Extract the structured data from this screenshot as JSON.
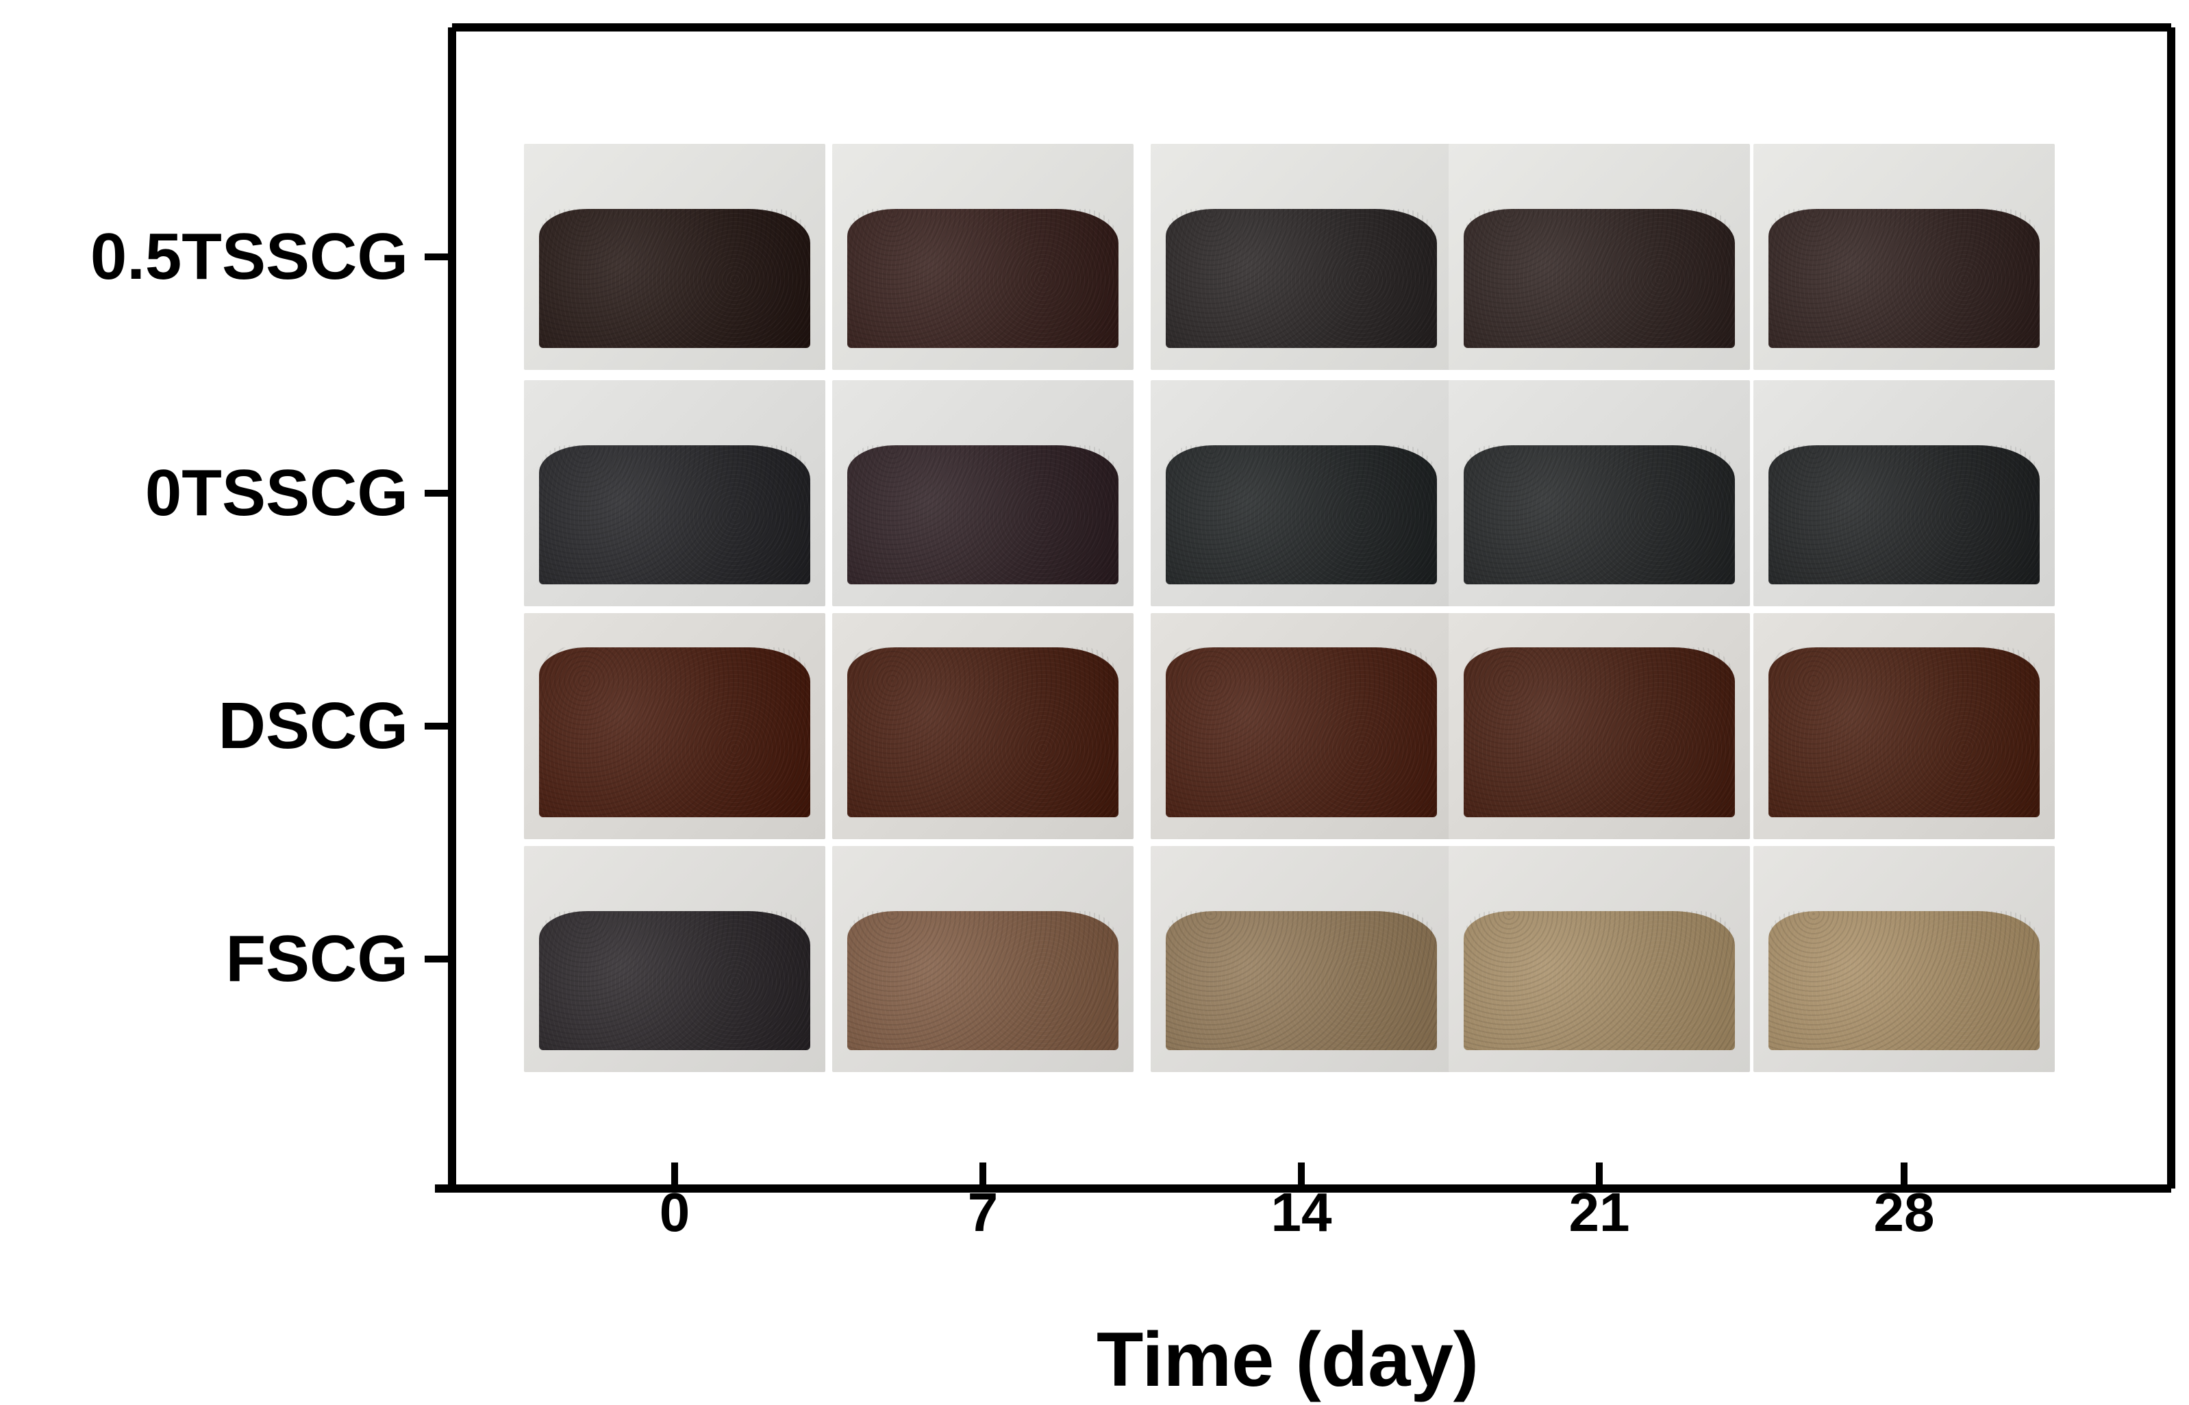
{
  "figure": {
    "x_title": "Time (day)",
    "columns": [
      "0",
      "7",
      "14",
      "21",
      "28"
    ],
    "rows": [
      {
        "label": "0.5TSSCG",
        "bg": "#e9e9e6",
        "colors": [
          "#2b1f1c",
          "#3a2522",
          "#2e2a2a",
          "#332826",
          "#352725"
        ]
      },
      {
        "label": "0TSSCG",
        "bg": "#e6e6e4",
        "colors": [
          "#2a2a2d",
          "#33262a",
          "#272a2b",
          "#2a2c2d",
          "#27292a"
        ]
      },
      {
        "label": "DSCG",
        "bg": "#e4e2de",
        "colors": [
          "#4a2216",
          "#4a2418",
          "#4c2519",
          "#4a2519",
          "#4b2518"
        ]
      },
      {
        "label": "FSCG",
        "bg": "#e6e5e2",
        "colors": [
          "#302c2f",
          "#7a5a45",
          "#8b7558",
          "#9d8765",
          "#9f8865"
        ]
      }
    ]
  },
  "axes": {
    "color": "#000000"
  }
}
